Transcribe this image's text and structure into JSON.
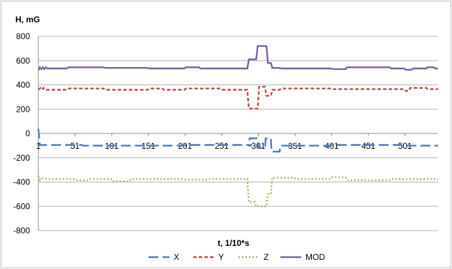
{
  "chart_data": {
    "type": "line",
    "ylabel": "H, mG",
    "xlabel": "t, 1/10*s",
    "ylim": [
      -800,
      800
    ],
    "yticks": [
      800,
      600,
      400,
      200,
      0,
      -200,
      -400,
      -600,
      -800
    ],
    "xlim": [
      1,
      546
    ],
    "xticks": [
      1,
      51,
      101,
      151,
      201,
      251,
      301,
      351,
      401,
      451,
      501
    ],
    "grid": true,
    "legend_position": "bottom",
    "series": [
      {
        "name": "X",
        "color": "#4a7ebb",
        "dash": "dashed-long",
        "points": [
          [
            1,
            40
          ],
          [
            3,
            -95
          ],
          [
            60,
            -95
          ],
          [
            62,
            -100
          ],
          [
            200,
            -100
          ],
          [
            202,
            -95
          ],
          [
            290,
            -95
          ],
          [
            292,
            -100
          ],
          [
            288,
            -100
          ],
          [
            289,
            -40
          ],
          [
            300,
            -40
          ],
          [
            301,
            -120
          ],
          [
            310,
            -120
          ],
          [
            311,
            -40
          ],
          [
            318,
            -40
          ],
          [
            319,
            -150
          ],
          [
            330,
            -150
          ],
          [
            331,
            -100
          ],
          [
            400,
            -100
          ],
          [
            401,
            -95
          ],
          [
            500,
            -95
          ],
          [
            502,
            -100
          ],
          [
            546,
            -100
          ]
        ]
      },
      {
        "name": "Y",
        "color": "#be4b48",
        "dash": "dashed-short",
        "points": [
          [
            1,
            360
          ],
          [
            4,
            375
          ],
          [
            6,
            360
          ],
          [
            8,
            375
          ],
          [
            10,
            360
          ],
          [
            38,
            360
          ],
          [
            40,
            370
          ],
          [
            90,
            370
          ],
          [
            92,
            360
          ],
          [
            150,
            360
          ],
          [
            152,
            370
          ],
          [
            170,
            370
          ],
          [
            172,
            360
          ],
          [
            200,
            360
          ],
          [
            202,
            370
          ],
          [
            250,
            370
          ],
          [
            252,
            360
          ],
          [
            286,
            360
          ],
          [
            288,
            205
          ],
          [
            300,
            205
          ],
          [
            302,
            385
          ],
          [
            310,
            385
          ],
          [
            312,
            310
          ],
          [
            318,
            310
          ],
          [
            320,
            360
          ],
          [
            330,
            360
          ],
          [
            332,
            370
          ],
          [
            400,
            370
          ],
          [
            402,
            365
          ],
          [
            500,
            365
          ],
          [
            502,
            350
          ],
          [
            506,
            350
          ],
          [
            508,
            375
          ],
          [
            530,
            375
          ],
          [
            532,
            365
          ],
          [
            546,
            365
          ]
        ]
      },
      {
        "name": "Z",
        "color": "#98b954",
        "dash": "dotted",
        "points": [
          [
            1,
            -350
          ],
          [
            3,
            -380
          ],
          [
            5,
            -365
          ],
          [
            8,
            -375
          ],
          [
            50,
            -375
          ],
          [
            52,
            -385
          ],
          [
            70,
            -385
          ],
          [
            72,
            -375
          ],
          [
            100,
            -375
          ],
          [
            102,
            -395
          ],
          [
            125,
            -395
          ],
          [
            127,
            -375
          ],
          [
            200,
            -375
          ],
          [
            202,
            -380
          ],
          [
            230,
            -380
          ],
          [
            232,
            -375
          ],
          [
            286,
            -375
          ],
          [
            288,
            -565
          ],
          [
            296,
            -565
          ],
          [
            298,
            -600
          ],
          [
            312,
            -600
          ],
          [
            314,
            -500
          ],
          [
            318,
            -500
          ],
          [
            320,
            -365
          ],
          [
            350,
            -365
          ],
          [
            352,
            -375
          ],
          [
            400,
            -375
          ],
          [
            402,
            -360
          ],
          [
            420,
            -360
          ],
          [
            422,
            -385
          ],
          [
            480,
            -385
          ],
          [
            482,
            -375
          ],
          [
            546,
            -375
          ]
        ]
      },
      {
        "name": "MOD",
        "color": "#7d60a0",
        "dash": "solid",
        "points": [
          [
            1,
            520
          ],
          [
            3,
            545
          ],
          [
            5,
            530
          ],
          [
            7,
            545
          ],
          [
            9,
            530
          ],
          [
            11,
            545
          ],
          [
            13,
            535
          ],
          [
            40,
            535
          ],
          [
            42,
            545
          ],
          [
            90,
            545
          ],
          [
            92,
            540
          ],
          [
            150,
            540
          ],
          [
            152,
            535
          ],
          [
            200,
            535
          ],
          [
            202,
            545
          ],
          [
            220,
            545
          ],
          [
            222,
            535
          ],
          [
            286,
            535
          ],
          [
            288,
            610
          ],
          [
            298,
            610
          ],
          [
            300,
            720
          ],
          [
            312,
            720
          ],
          [
            314,
            580
          ],
          [
            318,
            580
          ],
          [
            320,
            540
          ],
          [
            330,
            540
          ],
          [
            332,
            535
          ],
          [
            400,
            535
          ],
          [
            402,
            530
          ],
          [
            420,
            530
          ],
          [
            422,
            545
          ],
          [
            480,
            545
          ],
          [
            482,
            535
          ],
          [
            500,
            535
          ],
          [
            502,
            525
          ],
          [
            510,
            525
          ],
          [
            512,
            535
          ],
          [
            530,
            535
          ],
          [
            532,
            545
          ],
          [
            540,
            545
          ],
          [
            542,
            535
          ],
          [
            546,
            535
          ]
        ]
      }
    ]
  }
}
